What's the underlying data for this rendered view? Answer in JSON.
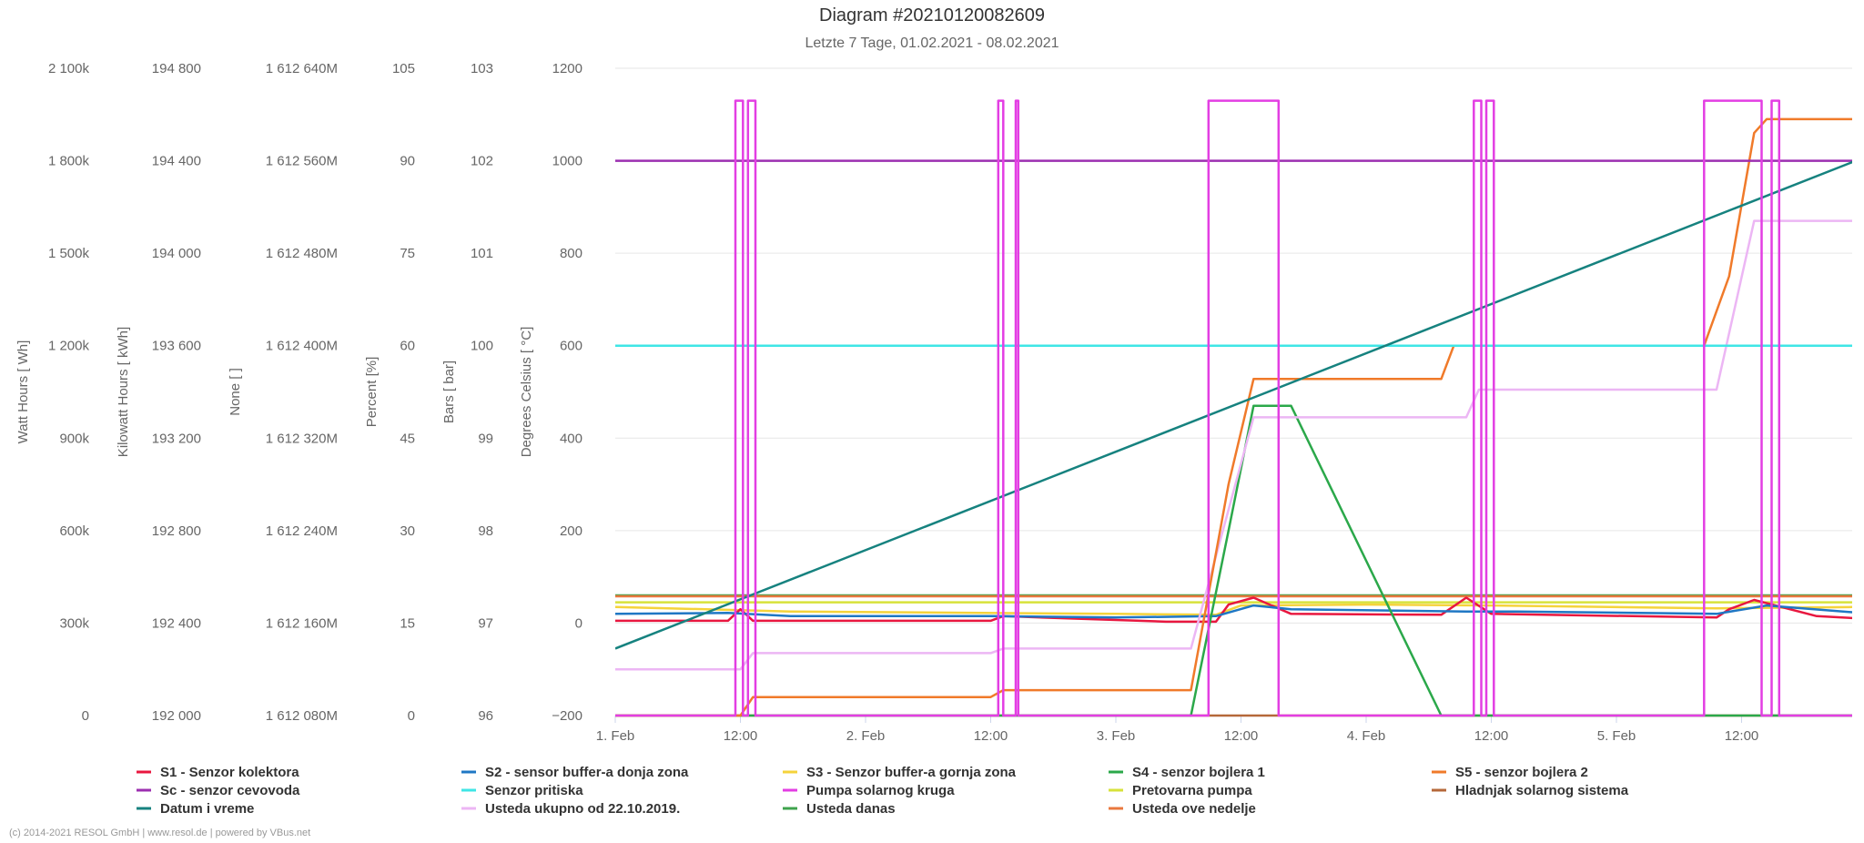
{
  "chart_data": {
    "type": "line",
    "title": "Diagram #20210120082609",
    "subtitle": "Letzte 7 Tage, 01.02.2021 - 08.02.2021",
    "credits": "(c) 2014-2021 RESOL GmbH | www.resol.de | powered by VBus.net",
    "x_ticks": [
      "1. Feb",
      "12:00",
      "2. Feb",
      "12:00",
      "3. Feb",
      "12:00",
      "4. Feb",
      "12:00",
      "5. Feb",
      "12:00"
    ],
    "x_range_days": [
      0,
      4.98
    ],
    "grid": true,
    "legend_placement": "bottom",
    "y_axes": [
      {
        "title": "Watt Hours [ Wh]",
        "ticks": [
          "0",
          "300k",
          "600k",
          "900k",
          "1 200k",
          "1 500k",
          "1 800k",
          "2 100k"
        ]
      },
      {
        "title": "Kilowatt Hours [ kWh]",
        "ticks": [
          "192 000",
          "192 400",
          "192 800",
          "193 200",
          "193 600",
          "194 000",
          "194 400",
          "194 800"
        ]
      },
      {
        "title": "None [ ]",
        "ticks": [
          "1 612 080M",
          "1 612 160M",
          "1 612 240M",
          "1 612 320M",
          "1 612 400M",
          "1 612 480M",
          "1 612 560M",
          "1 612 640M"
        ]
      },
      {
        "title": "Percent [%]",
        "ticks": [
          "0",
          "15",
          "30",
          "45",
          "60",
          "75",
          "90",
          "105"
        ]
      },
      {
        "title": "Bars [ bar]",
        "ticks": [
          "96",
          "97",
          "98",
          "99",
          "100",
          "101",
          "102",
          "103"
        ]
      },
      {
        "title": "Degrees Celsius [ °C]",
        "ticks": [
          "−200",
          "0",
          "200",
          "400",
          "600",
          "800",
          "1000",
          "1200"
        ]
      }
    ],
    "y_range": [
      -200,
      1200
    ],
    "series": [
      {
        "name": "S1 - Senzor kolektora",
        "color": "#e8173f",
        "points": [
          [
            0,
            5
          ],
          [
            0.45,
            5
          ],
          [
            0.5,
            30
          ],
          [
            0.55,
            5
          ],
          [
            1.5,
            5
          ],
          [
            1.55,
            15
          ],
          [
            2.2,
            3
          ],
          [
            2.4,
            3
          ],
          [
            2.45,
            40
          ],
          [
            2.55,
            55
          ],
          [
            2.7,
            20
          ],
          [
            3.3,
            18
          ],
          [
            3.4,
            55
          ],
          [
            3.5,
            20
          ],
          [
            4.4,
            12
          ],
          [
            4.45,
            30
          ],
          [
            4.55,
            50
          ],
          [
            4.8,
            15
          ],
          [
            4.98,
            10
          ]
        ]
      },
      {
        "name": "S2 - sensor buffer-a donja zona",
        "color": "#1f77c4",
        "points": [
          [
            0,
            20
          ],
          [
            0.45,
            22
          ],
          [
            0.7,
            15
          ],
          [
            1.5,
            15
          ],
          [
            2.0,
            12
          ],
          [
            2.4,
            15
          ],
          [
            2.55,
            38
          ],
          [
            2.7,
            30
          ],
          [
            3.4,
            25
          ],
          [
            3.6,
            25
          ],
          [
            4.4,
            20
          ],
          [
            4.6,
            38
          ],
          [
            4.98,
            22
          ]
        ]
      },
      {
        "name": "S3 - Senzor buffer-a gornja zona",
        "color": "#f5d33b",
        "points": [
          [
            0,
            35
          ],
          [
            0.7,
            25
          ],
          [
            2.0,
            20
          ],
          [
            2.4,
            18
          ],
          [
            2.5,
            38
          ],
          [
            3.0,
            40
          ],
          [
            3.5,
            38
          ],
          [
            4.4,
            32
          ],
          [
            4.98,
            35
          ]
        ]
      },
      {
        "name": "S4 - senzor bojlera 1",
        "color": "#2ba84a",
        "points": [
          [
            0,
            -200
          ],
          [
            2.3,
            -200
          ],
          [
            2.45,
            200
          ],
          [
            2.55,
            470
          ],
          [
            2.7,
            470
          ],
          [
            3.3,
            -200
          ],
          [
            4.98,
            -200
          ]
        ]
      },
      {
        "name": "S5 - senzor bojlera 2",
        "color": "#f07a2a",
        "points": [
          [
            0,
            -200
          ],
          [
            0.5,
            -200
          ],
          [
            0.55,
            -160
          ],
          [
            1.5,
            -160
          ],
          [
            1.55,
            -145
          ],
          [
            2.3,
            -145
          ],
          [
            2.45,
            300
          ],
          [
            2.55,
            528
          ],
          [
            3.3,
            528
          ],
          [
            3.35,
            600
          ],
          [
            4.35,
            600
          ],
          [
            4.45,
            750
          ],
          [
            4.55,
            1060
          ],
          [
            4.6,
            1090
          ],
          [
            4.98,
            1090
          ]
        ]
      },
      {
        "name": "Sc - senzor cevovoda",
        "color": "#9c2fb0",
        "points": [
          [
            0,
            1000
          ],
          [
            4.98,
            1000
          ]
        ]
      },
      {
        "name": "Senzor pritiska",
        "color": "#3fe6e6",
        "points": [
          [
            0,
            600
          ],
          [
            4.98,
            600
          ]
        ]
      },
      {
        "name": "Pumpa solarnog kruga",
        "color": "#e33ee3",
        "points": [
          [
            0,
            -200
          ],
          [
            0.48,
            -200
          ],
          [
            0.48,
            1130
          ],
          [
            0.51,
            1130
          ],
          [
            0.51,
            -200
          ],
          [
            0.53,
            -200
          ],
          [
            0.53,
            1130
          ],
          [
            0.56,
            1130
          ],
          [
            0.56,
            -200
          ],
          [
            1.53,
            -200
          ],
          [
            1.53,
            1130
          ],
          [
            1.55,
            1130
          ],
          [
            1.55,
            -200
          ],
          [
            1.6,
            -200
          ],
          [
            1.6,
            1130
          ],
          [
            1.61,
            1130
          ],
          [
            1.61,
            -200
          ],
          [
            2.37,
            -200
          ],
          [
            2.37,
            1130
          ],
          [
            2.65,
            1130
          ],
          [
            2.65,
            -200
          ],
          [
            3.43,
            -200
          ],
          [
            3.43,
            1130
          ],
          [
            3.46,
            1130
          ],
          [
            3.46,
            -200
          ],
          [
            3.48,
            -200
          ],
          [
            3.48,
            1130
          ],
          [
            3.51,
            1130
          ],
          [
            3.51,
            -200
          ],
          [
            4.35,
            -200
          ],
          [
            4.35,
            1130
          ],
          [
            4.58,
            1130
          ],
          [
            4.58,
            -200
          ],
          [
            4.62,
            -200
          ],
          [
            4.62,
            1130
          ],
          [
            4.65,
            1130
          ],
          [
            4.65,
            -200
          ],
          [
            4.98,
            -200
          ]
        ]
      },
      {
        "name": "Pretovarna pumpa",
        "color": "#d7e23b",
        "points": [
          [
            0,
            45
          ],
          [
            4.98,
            45
          ]
        ]
      },
      {
        "name": "Hladnjak solarnog sistema",
        "color": "#b5683a",
        "points": [
          [
            0,
            -200
          ],
          [
            4.98,
            -200
          ]
        ]
      },
      {
        "name": "Datum i vreme",
        "color": "#16827f",
        "points": [
          [
            0,
            -55
          ],
          [
            4.98,
            1005
          ]
        ]
      },
      {
        "name": "Usteda ukupno od 22.10.2019.",
        "color": "#ecb6f4",
        "points": [
          [
            0,
            -100
          ],
          [
            0.5,
            -100
          ],
          [
            0.55,
            -65
          ],
          [
            1.5,
            -65
          ],
          [
            1.55,
            -55
          ],
          [
            2.3,
            -55
          ],
          [
            2.55,
            445
          ],
          [
            3.4,
            445
          ],
          [
            3.45,
            505
          ],
          [
            4.4,
            505
          ],
          [
            4.55,
            870
          ],
          [
            4.98,
            870
          ]
        ]
      },
      {
        "name": "Usteda danas",
        "color": "#3fa34d",
        "points": [
          [
            0,
            60
          ],
          [
            4.98,
            60
          ]
        ]
      },
      {
        "name": "Usteda ove nedelje",
        "color": "#e9783e",
        "points": [
          [
            0,
            58
          ],
          [
            4.98,
            58
          ]
        ]
      }
    ]
  }
}
